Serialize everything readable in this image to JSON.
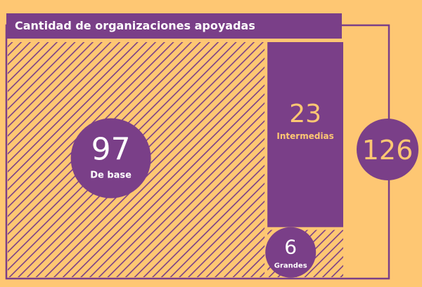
{
  "title": "Cantidad de organizaciones apoyadas",
  "colors": {
    "background": "#FEC773",
    "accent": "#7A3F88",
    "text_on_accent": "#ffffff"
  },
  "total": {
    "value": "126"
  },
  "chart_data": {
    "type": "treemap",
    "title": "Cantidad de organizaciones apoyadas",
    "total": 126,
    "items": [
      {
        "label": "De base",
        "value": 97,
        "fill": "hatched"
      },
      {
        "label": "Intermedias",
        "value": 23,
        "fill": "solid"
      },
      {
        "label": "Grandes",
        "value": 6,
        "fill": "hatched"
      }
    ]
  }
}
